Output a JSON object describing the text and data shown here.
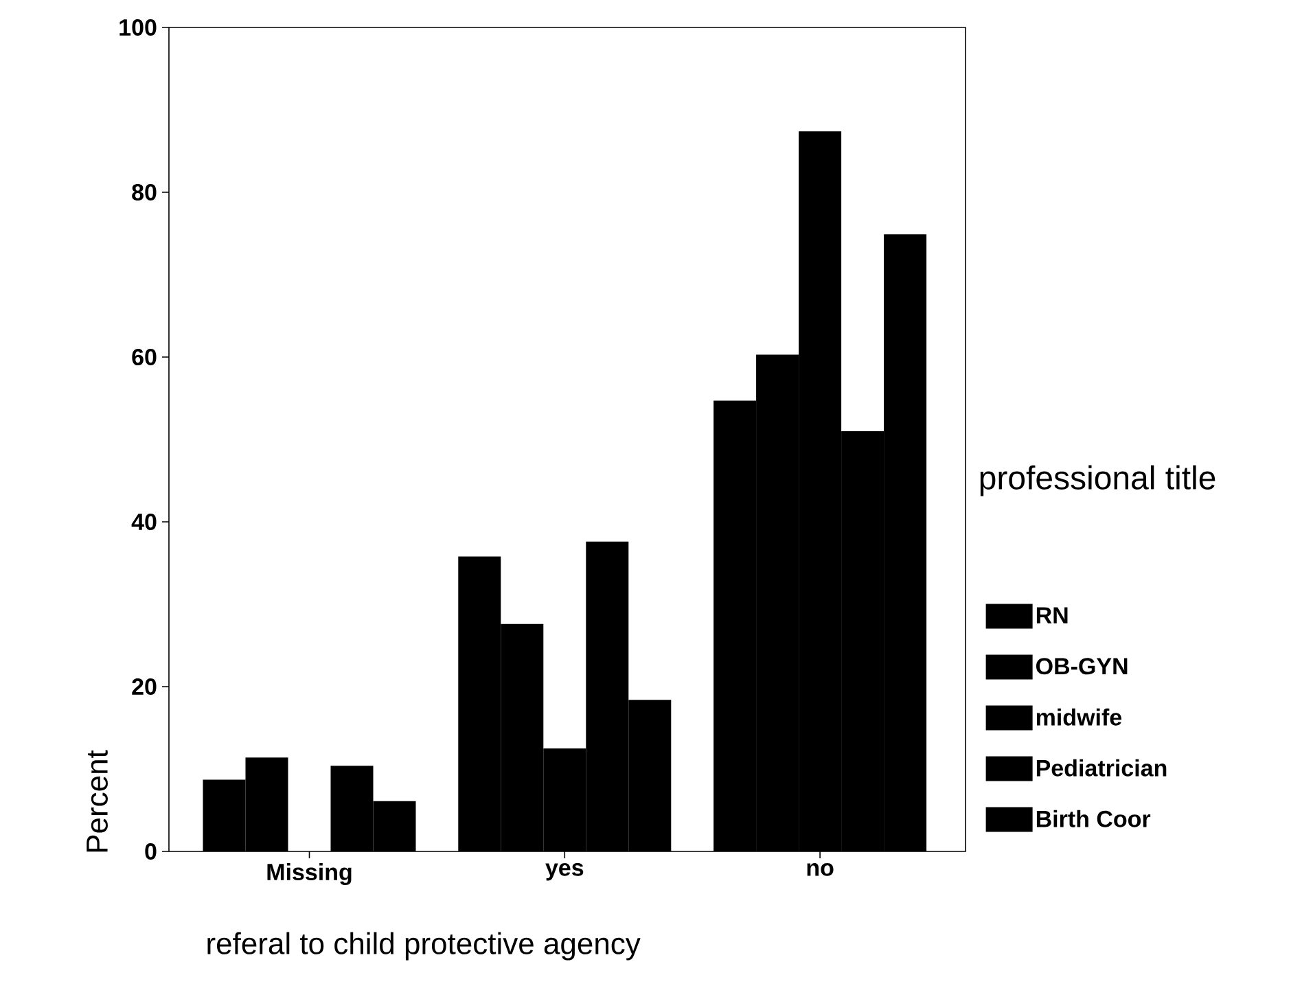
{
  "chart_data": {
    "type": "bar",
    "xlabel": "referal to child protective agency",
    "ylabel": "Percent",
    "legend_title": "professional title",
    "categories": [
      "Missing",
      "yes",
      "no"
    ],
    "series": [
      {
        "name": "RN",
        "color": "#000000",
        "values": [
          8.7,
          35.8,
          54.7
        ]
      },
      {
        "name": "OB-GYN",
        "color": "#000000",
        "values": [
          11.4,
          27.6,
          60.3
        ]
      },
      {
        "name": "midwife",
        "color": "#000000",
        "values": [
          0,
          12.5,
          87.4
        ]
      },
      {
        "name": "Pediatrician",
        "color": "#000000",
        "values": [
          10.4,
          37.6,
          51
        ]
      },
      {
        "name": "Birth Coor",
        "color": "#000000",
        "values": [
          6.1,
          18.4,
          74.9
        ]
      }
    ],
    "ylim": [
      0,
      100
    ],
    "yticks": [
      0,
      20,
      40,
      60,
      80,
      100
    ],
    "grid": false,
    "legend": "right"
  }
}
